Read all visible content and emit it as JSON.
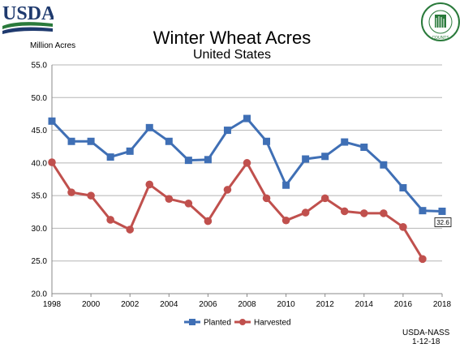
{
  "header": {
    "logo_text": "USDA",
    "seal_text": "AGRICULTURE COUNTS"
  },
  "colors": {
    "planted": "#3F6FB5",
    "harvested": "#C0504D",
    "grid": "#B5B5B5",
    "usda_navy": "#1F3A6E",
    "usda_green": "#2A7A3B"
  },
  "footer": {
    "line1": "USDA-NASS",
    "line2": "1-12-18"
  },
  "chart_data": {
    "type": "line",
    "title": "Winter Wheat Acres",
    "subtitle": "United States",
    "ylabel": "Million Acres",
    "xlabel": "",
    "ylim": [
      20.0,
      55.0
    ],
    "xlim": [
      1998,
      2018
    ],
    "y_ticks": [
      "20.0",
      "25.0",
      "30.0",
      "35.0",
      "40.0",
      "45.0",
      "50.0",
      "55.0"
    ],
    "x_ticks": [
      "1998",
      "2000",
      "2002",
      "2004",
      "2006",
      "2008",
      "2010",
      "2012",
      "2014",
      "2016",
      "2018"
    ],
    "grid": true,
    "legend_position": "bottom",
    "x": [
      1998,
      1999,
      2000,
      2001,
      2002,
      2003,
      2004,
      2005,
      2006,
      2007,
      2008,
      2009,
      2010,
      2011,
      2012,
      2013,
      2014,
      2015,
      2016,
      2017,
      2018
    ],
    "series": [
      {
        "name": "Planted",
        "marker": "square",
        "values": [
          46.4,
          43.3,
          43.3,
          40.9,
          41.8,
          45.4,
          43.3,
          40.4,
          40.5,
          45.0,
          46.8,
          43.3,
          36.6,
          40.6,
          41.0,
          43.2,
          42.4,
          39.7,
          36.2,
          32.7,
          32.6
        ]
      },
      {
        "name": "Harvested",
        "marker": "circle",
        "values": [
          40.1,
          35.5,
          35.0,
          31.3,
          29.8,
          36.7,
          34.5,
          33.8,
          31.1,
          35.9,
          40.0,
          34.6,
          31.2,
          32.4,
          34.6,
          32.6,
          32.3,
          32.3,
          30.2,
          25.3,
          null
        ]
      }
    ],
    "annotations": [
      {
        "series": "Planted",
        "x": 2018,
        "text": "32.6"
      }
    ]
  }
}
